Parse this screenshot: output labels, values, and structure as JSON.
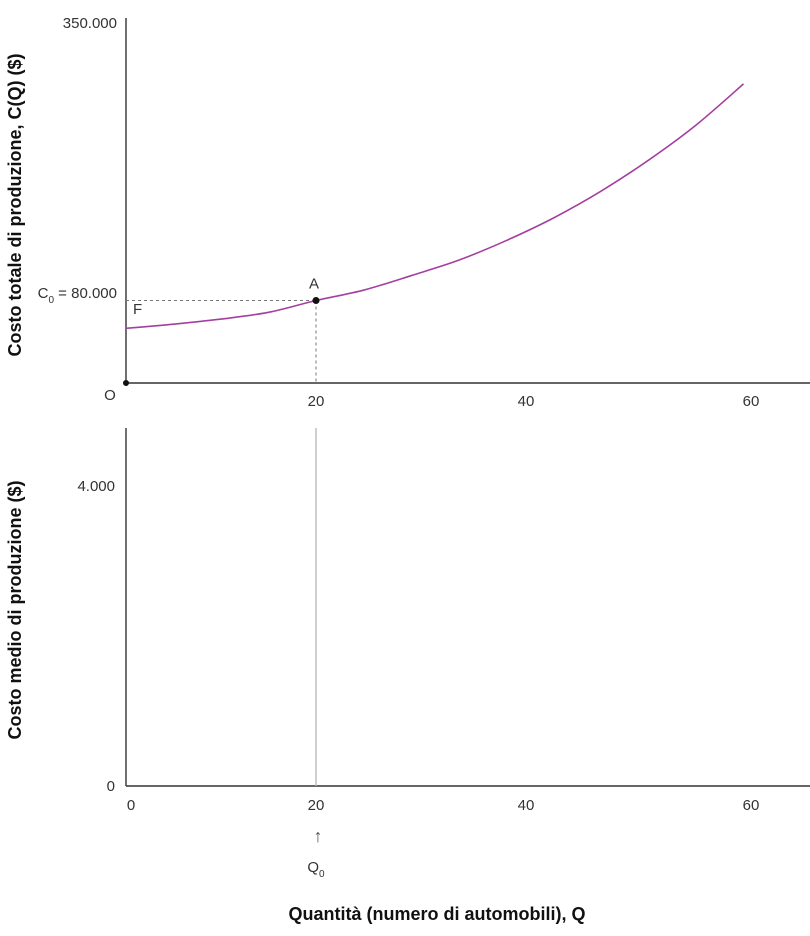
{
  "colors": {
    "curve": "#a43fa0",
    "axis": "#333333",
    "guide": "#777777",
    "q0_line": "#bbbbbb"
  },
  "x_axis_title": "Quantità (numero di automobili), Q",
  "chart_data": [
    {
      "type": "line",
      "ylabel": "Costo totale di produzione, C(Q) ($)",
      "xlim": [
        0,
        65
      ],
      "ylim": [
        0,
        350000
      ],
      "x_ticks": [
        "20",
        "40",
        "60"
      ],
      "y_ticks": [
        "350.000"
      ],
      "origin_label": "O",
      "series": [
        {
          "x": [
            0,
            5,
            10,
            15,
            20,
            25,
            30,
            35,
            40,
            45,
            50,
            55,
            60,
            65
          ],
          "y": [
            53000,
            57000,
            62000,
            68500,
            80000,
            90000,
            104000,
            119000,
            138000,
            160000,
            186000,
            216000,
            250000,
            290000
          ]
        }
      ],
      "point": {
        "label": "A",
        "x": 20,
        "y": 80000
      },
      "annotations": {
        "c0_sym": "C",
        "c0_sub": "0",
        "c0_value": " = 80.000",
        "f_label": "F"
      }
    },
    {
      "type": "line",
      "ylabel": "Costo medio di produzione ($)",
      "xlim": [
        0,
        65
      ],
      "ylim": [
        0,
        4000
      ],
      "x_ticks": [
        "0",
        "20",
        "40",
        "60"
      ],
      "y_ticks": [
        "0",
        "4.000"
      ],
      "series": [],
      "marker_x": 20,
      "q0": {
        "arrow": "↑",
        "sym": "Q",
        "sub": "0"
      }
    }
  ]
}
